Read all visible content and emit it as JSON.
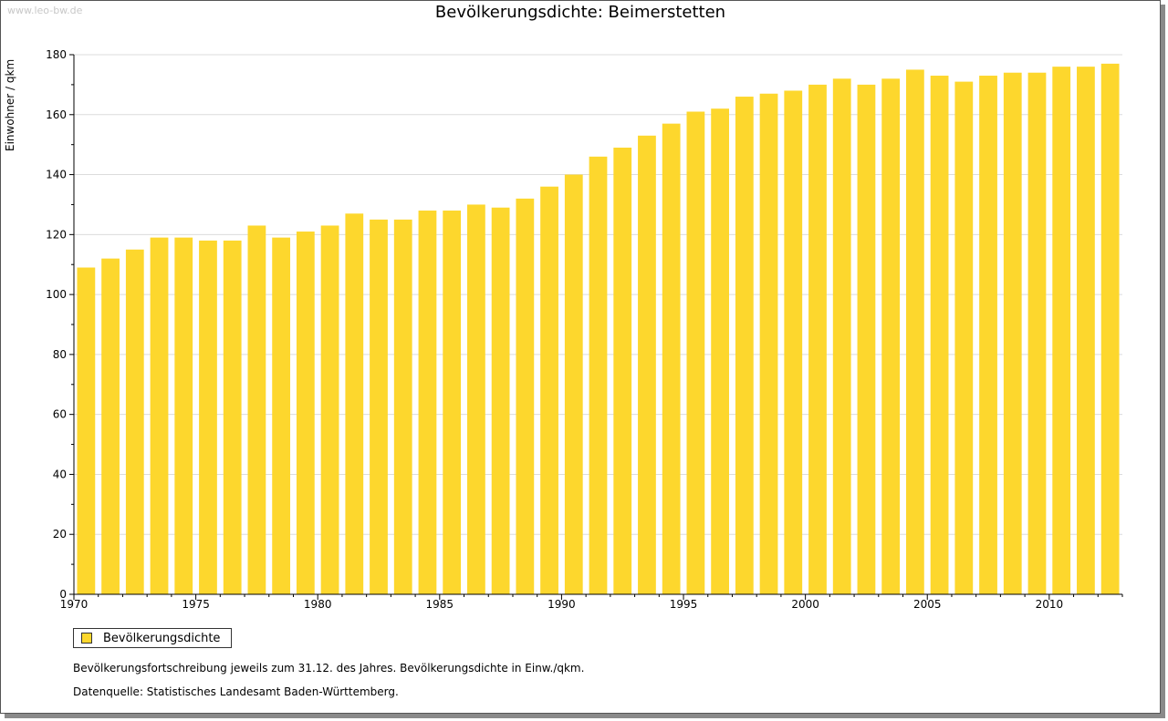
{
  "watermark": "www.leo-bw.de",
  "colors": {
    "bar": "#fdd72d",
    "grid": "#dcdcdc",
    "axis": "#000000"
  },
  "chart_data": {
    "type": "bar",
    "title": "Bevölkerungsdichte: Beimerstetten",
    "xlabel": "",
    "ylabel": "Einwohner / qkm",
    "ylim": [
      0,
      180
    ],
    "yticks": [
      0,
      20,
      40,
      60,
      80,
      100,
      120,
      140,
      160,
      180
    ],
    "xtick_labels": [
      "1970",
      "1975",
      "1980",
      "1985",
      "1990",
      "1995",
      "2000",
      "2005",
      "2010"
    ],
    "grid": true,
    "legend_position": "bottom-left",
    "categories": [
      1970,
      1971,
      1972,
      1973,
      1974,
      1975,
      1976,
      1977,
      1978,
      1979,
      1980,
      1981,
      1982,
      1983,
      1984,
      1985,
      1986,
      1987,
      1988,
      1989,
      1990,
      1991,
      1992,
      1993,
      1994,
      1995,
      1996,
      1997,
      1998,
      1999,
      2000,
      2001,
      2002,
      2003,
      2004,
      2005,
      2006,
      2007,
      2008,
      2009,
      2010,
      2011,
      2012
    ],
    "series": [
      {
        "name": "Bevölkerungsdichte",
        "values": [
          109,
          112,
          115,
          119,
          119,
          118,
          118,
          123,
          119,
          121,
          123,
          127,
          125,
          125,
          128,
          128,
          130,
          129,
          132,
          136,
          140,
          146,
          149,
          153,
          157,
          161,
          162,
          166,
          167,
          168,
          170,
          172,
          170,
          172,
          175,
          173,
          171,
          173,
          174,
          174,
          176,
          176,
          177
        ]
      }
    ]
  },
  "footnotes": {
    "line1": "Bevölkerungsfortschreibung jeweils zum 31.12. des Jahres. Bevölkerungsdichte in Einw./qkm.",
    "line2": "Datenquelle: Statistisches Landesamt Baden-Württemberg."
  }
}
